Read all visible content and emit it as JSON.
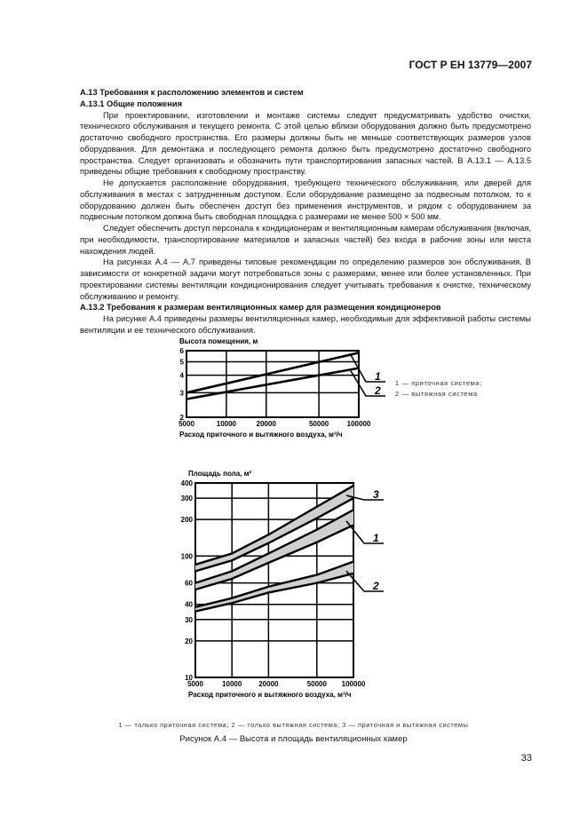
{
  "header": {
    "standard": "ГОСТ Р ЕН 13779—2007"
  },
  "body": {
    "h_a13": "А.13 Требования к расположению элементов и систем",
    "h_a131": "А.13.1 Общие положения",
    "p1": "При проектировании, изготовлении и монтаже системы следует предусматривать удобство очистки, технического обслуживания и текущего ремонта. С этой целью вблизи оборудования должно быть предусмотрено достаточно свободного пространства. Его размеры должны быть не меньше соответствующих размеров узлов оборудования. Для демонтажа и последующего ремонта должно быть предусмотрено достаточно свободного пространства. Следует организовать и обозначить пути транспортирования запасных частей. В А.13.1 — А.13.5 приведены общие требования к свободному пространству.",
    "p2": "Не допускается расположение оборудования, требующего технического обслуживания, или дверей для обслуживания в местах с затрудненным доступом. Если оборудование размещено за подвесным потолком, то к оборудованию должен быть обеспечен доступ без применения инструментов, и рядом с оборудованием за подвесным потолком должна быть свободная площадка с размерами не менее 500 × 500 мм.",
    "p3": "Следует обеспечить доступ персонала к кондиционерам и вентиляционным камерам обслуживания (включая, при необходимости, транспортирование материалов и запасных частей) без входа в рабочие зоны или места нахождения людей.",
    "p4": "На рисунках А.4 — А.7 приведены типовые рекомендации по определению размеров зон обслуживания. В зависимости от конкретной задачи могут потребоваться зоны с размерами, менее или более установленных. При проектировании системы вентиляции кондиционирования следует учитывать требования к очистке, техническому обслуживанию и ремонту.",
    "h_a132": "А.13.2 Требования к размерам вентиляционных камер для размещения кондиционеров",
    "p5": "На рисунке А.4 приведены размеры вентиляционных камер, необходимые для эффективной работы системы вентиляции и ее технического обслуживания."
  },
  "chart_data": [
    {
      "type": "line",
      "ylabel": "Высота помещения, м",
      "xlabel": "Расход приточного и вытяжного воздуха, м³/ч",
      "x_scale": "log",
      "y_scale": "log",
      "xlim": [
        5000,
        100000
      ],
      "ylim": [
        2,
        6
      ],
      "x_ticks": [
        "5000",
        "10000",
        "20000",
        "50000",
        "100000"
      ],
      "x_tick_values": [
        5000,
        10000,
        20000,
        50000,
        100000
      ],
      "y_ticks": [
        "2",
        "3",
        "4",
        "5",
        "6"
      ],
      "y_tick_values": [
        2,
        3,
        4,
        5,
        6
      ],
      "grid": true,
      "series": [
        {
          "name": "1",
          "x": [
            5000,
            100000
          ],
          "y": [
            3.0,
            5.8
          ]
        },
        {
          "name": "2",
          "x": [
            5000,
            100000
          ],
          "y": [
            2.7,
            4.5
          ]
        }
      ],
      "legend": [
        "1 — приточная система;",
        "2 — вытяжная система"
      ]
    },
    {
      "type": "area",
      "ylabel": "Площадь пола, м²",
      "xlabel": "Расход приточного и вытяжного воздуха, м³/ч",
      "x_scale": "log",
      "y_scale": "log",
      "xlim": [
        5000,
        100000
      ],
      "ylim": [
        10,
        400
      ],
      "x_ticks": [
        "5000",
        "10000",
        "20000",
        "50000",
        "100000"
      ],
      "x_tick_values": [
        5000,
        10000,
        20000,
        50000,
        100000
      ],
      "y_ticks": [
        "10",
        "20",
        "30",
        "40",
        "60",
        "100",
        "200",
        "300",
        "400"
      ],
      "y_tick_values": [
        10,
        20,
        30,
        40,
        60,
        100,
        200,
        300,
        400
      ],
      "grid": true,
      "band_color": "#cfcfcf",
      "series": [
        {
          "name": "3",
          "x": [
            5000,
            10000,
            20000,
            50000,
            100000
          ],
          "upper": [
            85,
            105,
            150,
            255,
            380
          ],
          "lower": [
            75,
            92,
            128,
            205,
            300
          ]
        },
        {
          "name": "1",
          "x": [
            5000,
            10000,
            20000,
            50000,
            100000
          ],
          "upper": [
            60,
            75,
            105,
            165,
            240
          ],
          "lower": [
            53,
            65,
            88,
            130,
            180
          ]
        },
        {
          "name": "2",
          "x": [
            5000,
            10000,
            20000,
            50000,
            100000
          ],
          "upper": [
            38,
            45,
            56,
            70,
            90
          ],
          "lower": [
            35,
            41,
            50,
            60,
            72
          ]
        }
      ]
    }
  ],
  "figure": {
    "legend": "1 — только приточная система; 2 — только вытяжная система; 3 — приточная и вытяжная системы",
    "caption": "Рисунок А.4 — Высота и площадь вентиляционных камер"
  },
  "page_number": "33"
}
